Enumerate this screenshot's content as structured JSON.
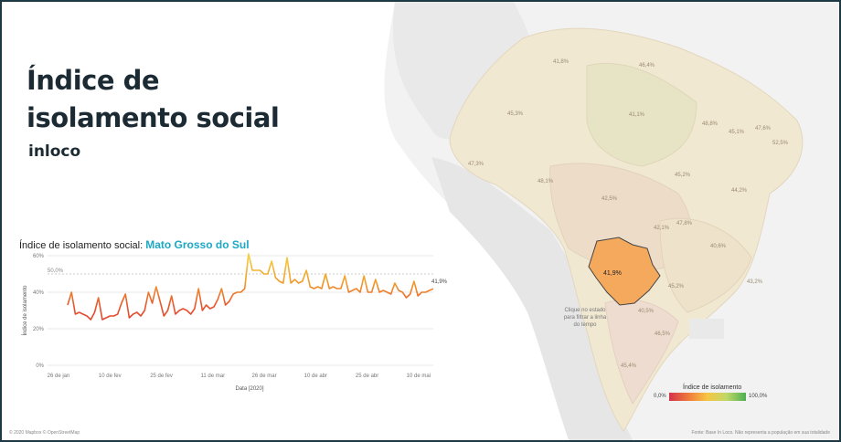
{
  "dashboard": {
    "title_line1": "Índice de",
    "title_line2": "isolamento social",
    "brand": "inloco"
  },
  "chart": {
    "title_prefix": "Índice de isolamento social:",
    "state_name": "Mato Grosso do Sul"
  },
  "chart_data": {
    "type": "line",
    "title": "Índice de isolamento social: Mato Grosso do Sul",
    "xlabel": "Data [2020]",
    "ylabel": "Índice de isolamento",
    "ylim": [
      0,
      60
    ],
    "y_ticks": [
      "0%",
      "20%",
      "40%",
      "60%"
    ],
    "x_ticks": [
      "26 de jan",
      "10 de fev",
      "25 de fev",
      "11 de mar",
      "26 de mar",
      "10 de abr",
      "25 de abr",
      "10 de mai"
    ],
    "reference_line": {
      "value": 50,
      "label": "50,0%"
    },
    "last_value_label": "41,9%",
    "grid": true,
    "series": [
      {
        "values": [
          33,
          40,
          28,
          29,
          28,
          27,
          25,
          29,
          37,
          25,
          26,
          27,
          27,
          28,
          34,
          39,
          26,
          28,
          29,
          27,
          30,
          40,
          34,
          43,
          35,
          27,
          30,
          38,
          28,
          30,
          31,
          30,
          28,
          31,
          42,
          30,
          33,
          31,
          32,
          36,
          42,
          33,
          35,
          39,
          40,
          40,
          42,
          61,
          52,
          52,
          52,
          50,
          50,
          57,
          48,
          46,
          45,
          59,
          45,
          47,
          45,
          46,
          52,
          43,
          42,
          43,
          42,
          50,
          42,
          43,
          42,
          42,
          49,
          40,
          41,
          42,
          40,
          49,
          40,
          40,
          47,
          40,
          41,
          40,
          39,
          45,
          41,
          40,
          37,
          39,
          46,
          38,
          40,
          40,
          41,
          41.9
        ]
      }
    ]
  },
  "map": {
    "selected_value": "41,9%",
    "hint": "Clique no estado para filtrar a linha do tempo",
    "region_labels": [
      "41,8%",
      "46,4%",
      "45,3%",
      "41,1%",
      "48,8%",
      "45,1%",
      "47,6%",
      "52,5%",
      "47,3%",
      "45,2%",
      "48,1%",
      "44,2%",
      "42,5%",
      "47,8%",
      "42,1%",
      "40,6%",
      "45,2%",
      "40,5%",
      "46,5%",
      "45,4%",
      "43,2%"
    ],
    "legend_title": "Índice de isolamento",
    "legend_min": "0,0%",
    "legend_max": "100,0%",
    "attribution": "© 2020 Mapbox © OpenStreetMap",
    "source": "Fonte: Base In Loco. Não representa a população em sua totalidade"
  },
  "colors": {
    "frame": "#1d3a44",
    "title": "#1c2b33",
    "accent": "#1ca8c4",
    "selected_state": "#f5a95c"
  }
}
